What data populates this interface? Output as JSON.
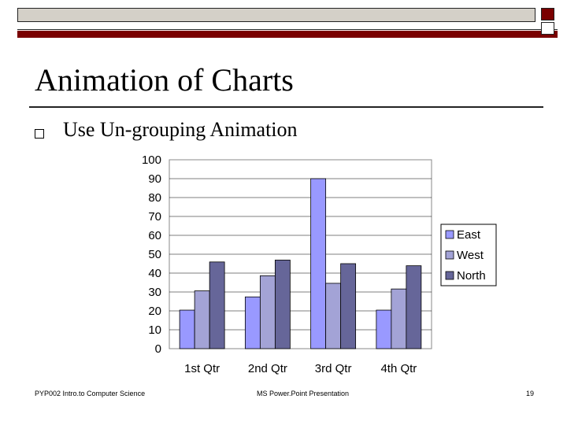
{
  "slide": {
    "title": "Animation of Charts",
    "bullet": "Use Un-grouping Animation",
    "footer_left": "PYP002 Intro.to Computer Science",
    "footer_center": "MS Power.Point Presentation",
    "page_number": "19"
  },
  "colors": {
    "accent_dark_red": "#7a0000",
    "East": "#9999ff",
    "West": "#a3a3d6",
    "North": "#666699"
  },
  "chart_data": {
    "type": "bar",
    "categories": [
      "1st Qtr",
      "2nd Qtr",
      "3rd Qtr",
      "4th Qtr"
    ],
    "series": [
      {
        "name": "East",
        "values": [
          20.4,
          27.4,
          90,
          20.4
        ]
      },
      {
        "name": "West",
        "values": [
          30.6,
          38.6,
          34.6,
          31.6
        ]
      },
      {
        "name": "North",
        "values": [
          45.9,
          46.9,
          45,
          43.9
        ]
      }
    ],
    "ylim": [
      0,
      100
    ],
    "yticks": [
      "0",
      "10",
      "20",
      "30",
      "40",
      "50",
      "60",
      "70",
      "80",
      "90",
      "100"
    ],
    "legend": "right",
    "grid": true
  }
}
